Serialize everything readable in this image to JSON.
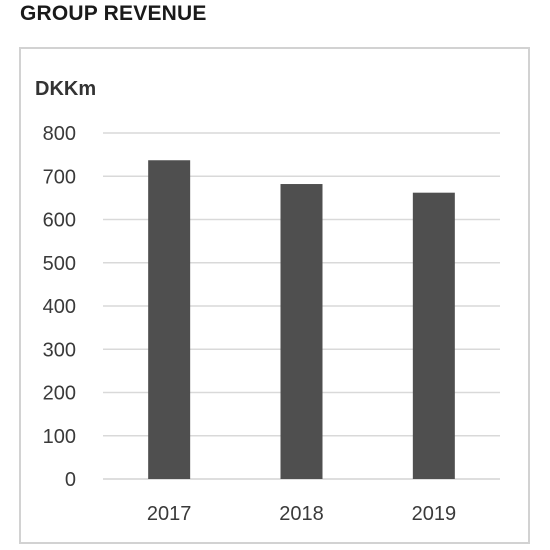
{
  "title": "GROUP REVENUE",
  "chart_data": {
    "type": "bar",
    "title": "GROUP REVENUE",
    "ylabel": "DKKm",
    "xlabel": "",
    "categories": [
      "2017",
      "2018",
      "2019"
    ],
    "values": [
      737,
      682,
      662
    ],
    "ylim": [
      0,
      800
    ],
    "yticks": [
      0,
      100,
      200,
      300,
      400,
      500,
      600,
      700,
      800
    ],
    "grid": true,
    "legend": "none",
    "bar_color": "#4f4f4f",
    "grid_color": "#d9d9d9"
  }
}
